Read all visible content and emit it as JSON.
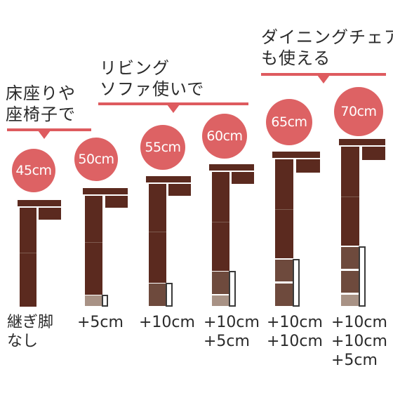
{
  "headings": {
    "floor": "床座りや\n座椅子で",
    "living": "リビング\nソファ使いで",
    "dining": "ダイニングチェア\nも使える"
  },
  "heights": [
    "45cm",
    "50cm",
    "55cm",
    "60cm",
    "65cm",
    "70cm"
  ],
  "legs": [
    "継ぎ脚\nなし",
    "+5cm",
    "+10cm",
    "+10cm\n+5cm",
    "+10cm\n+10cm",
    "+10cm\n+10cm\n+5cm"
  ],
  "colors": {
    "accent": "#de5b5f",
    "circle": "#dd6264",
    "wood": "#5b2a1f",
    "leg_extension": "#a89285"
  }
}
